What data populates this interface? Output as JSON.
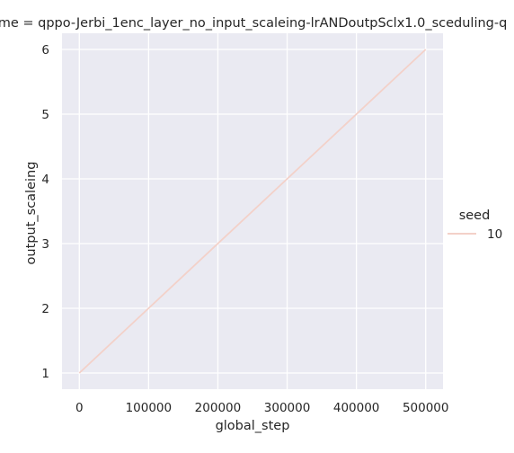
{
  "chart_data": {
    "type": "line",
    "title": "me = qppo-Jerbi_1enc_layer_no_input_scaleing-lrANDoutpSclx1.0_sceduling-q",
    "xlabel": "global_step",
    "ylabel": "output_scaleing",
    "xlim": [
      -25000,
      525000
    ],
    "ylim": [
      0.75,
      6.25
    ],
    "xticks": [
      0,
      100000,
      200000,
      300000,
      400000,
      500000
    ],
    "xtick_labels": [
      "0",
      "100000",
      "200000",
      "300000",
      "400000",
      "500000"
    ],
    "yticks": [
      1,
      2,
      3,
      4,
      5,
      6
    ],
    "ytick_labels": [
      "1",
      "2",
      "3",
      "4",
      "5",
      "6"
    ],
    "grid": true,
    "legend_position": "right",
    "legend": {
      "title": "seed",
      "entries": [
        "10"
      ]
    },
    "series": [
      {
        "name": "10",
        "color": "#f3d1c9",
        "x": [
          0,
          500000
        ],
        "y": [
          1,
          6
        ]
      }
    ]
  },
  "colors": {
    "plot_background": "#eaeaf2",
    "grid": "#ffffff",
    "text": "#262626",
    "series_line": "#f3d1c9"
  }
}
